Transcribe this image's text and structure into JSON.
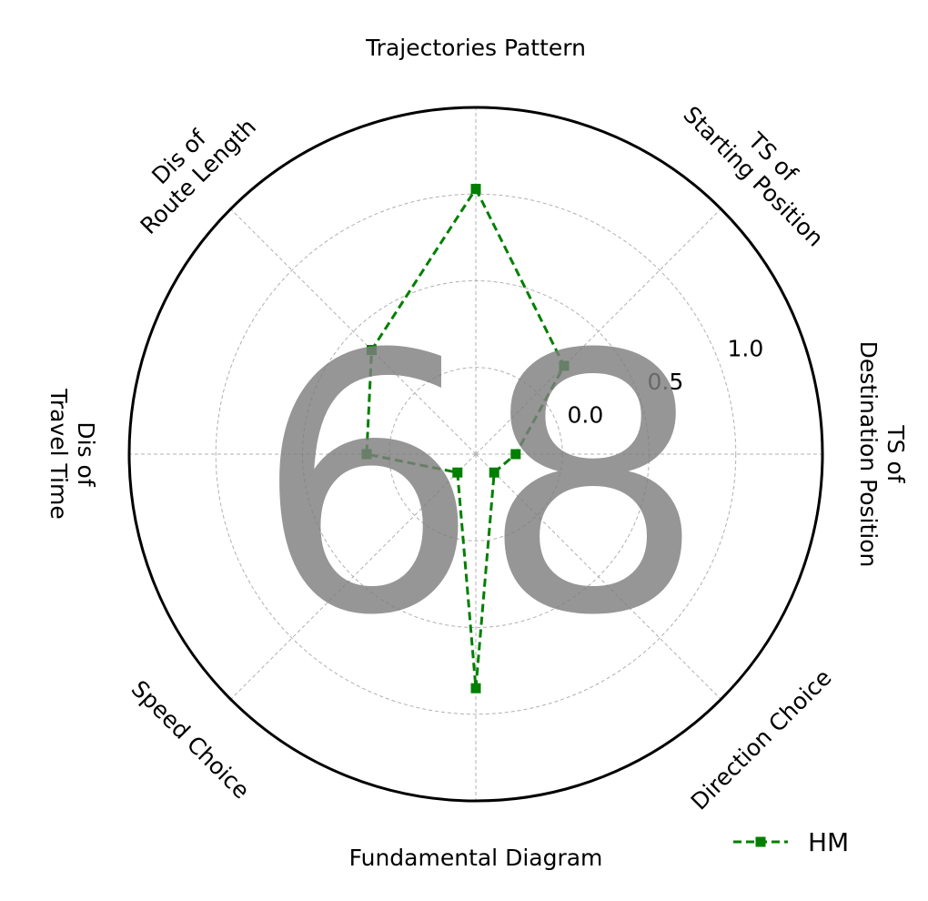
{
  "chart_data": {
    "type": "radar",
    "axes": [
      [
        "Trajectories Pattern"
      ],
      [
        "TS of",
        "Starting Position"
      ],
      [
        "TS of",
        "Destination Position"
      ],
      [
        "Direction Choice"
      ],
      [
        "Fundamental Diagram"
      ],
      [
        "Speed Choice"
      ],
      [
        "Dis of",
        "Travel Time"
      ],
      [
        "Dis of",
        "Route Length"
      ]
    ],
    "series": [
      {
        "name": "HM",
        "values": [
          1.03,
          0.22,
          -0.27,
          -0.35,
          0.85,
          -0.35,
          0.13,
          0.35
        ],
        "color": "#007f00",
        "line_style": "dashed",
        "marker": "square"
      }
    ],
    "rlim": [
      -0.5,
      1.5
    ],
    "radial_ticks": [
      0.0,
      0.5,
      1.0
    ],
    "radial_tick_labels": [
      "0.0",
      "0.5",
      "1.0"
    ],
    "grid_circles": [
      0.0,
      0.5,
      1.0
    ],
    "grid": true,
    "legend_placement": "bottom-right",
    "center_score": "68"
  }
}
